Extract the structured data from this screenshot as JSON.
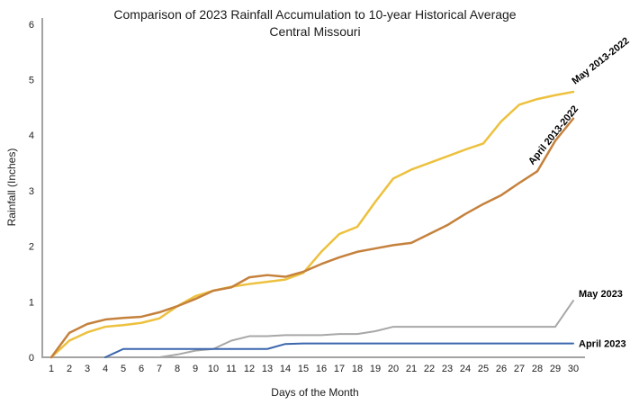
{
  "chart_data": {
    "type": "line",
    "title": "Comparison of 2023 Rainfall Accumulation to 10-year Historical Average",
    "subtitle": "Central Missouri",
    "xlabel": "Days of the Month",
    "ylabel": "Rainfall (Inches)",
    "x": [
      1,
      2,
      3,
      4,
      5,
      6,
      7,
      8,
      9,
      10,
      11,
      12,
      13,
      14,
      15,
      16,
      17,
      18,
      19,
      20,
      21,
      22,
      23,
      24,
      25,
      26,
      27,
      28,
      29,
      30
    ],
    "y_ticks": [
      0,
      1,
      2,
      3,
      4,
      5,
      6
    ],
    "ylim": [
      0,
      6
    ],
    "xlim": [
      1,
      30
    ],
    "grid": false,
    "legend_position": "end-of-line-labels",
    "axis_color": "#a3a3a3",
    "series": [
      {
        "name": "May 2013-2022",
        "color": "#edc13e",
        "values": [
          0,
          0.3,
          0.45,
          0.55,
          0.58,
          0.62,
          0.7,
          0.92,
          1.1,
          1.2,
          1.27,
          1.32,
          1.36,
          1.4,
          1.52,
          1.9,
          2.22,
          2.35,
          2.8,
          3.22,
          3.38,
          3.5,
          3.62,
          3.74,
          3.85,
          4.25,
          4.55,
          4.65,
          4.72,
          4.78
        ]
      },
      {
        "name": "April 2013-2022",
        "color": "#c5813c",
        "values": [
          0,
          0.44,
          0.6,
          0.68,
          0.71,
          0.73,
          0.81,
          0.92,
          1.05,
          1.2,
          1.26,
          1.44,
          1.48,
          1.45,
          1.54,
          1.68,
          1.8,
          1.9,
          1.96,
          2.02,
          2.06,
          2.22,
          2.38,
          2.58,
          2.76,
          2.92,
          3.14,
          3.35,
          3.9,
          4.3
        ]
      },
      {
        "name": "May 2023",
        "color": "#a7a7a7",
        "values": [
          null,
          null,
          null,
          null,
          null,
          null,
          0,
          0.05,
          0.12,
          0.15,
          0.3,
          0.38,
          0.38,
          0.4,
          0.4,
          0.4,
          0.42,
          0.42,
          0.47,
          0.55,
          0.55,
          0.55,
          0.55,
          0.55,
          0.55,
          0.55,
          0.55,
          0.55,
          0.55,
          1.02
        ]
      },
      {
        "name": "April 2023",
        "color": "#3b66ad",
        "values": [
          null,
          null,
          null,
          0,
          0.15,
          0.15,
          0.15,
          0.15,
          0.15,
          0.15,
          0.15,
          0.15,
          0.15,
          0.24,
          0.25,
          0.25,
          0.25,
          0.25,
          0.25,
          0.25,
          0.25,
          0.25,
          0.25,
          0.25,
          0.25,
          0.25,
          0.25,
          0.25,
          0.25,
          0.25
        ]
      }
    ]
  }
}
